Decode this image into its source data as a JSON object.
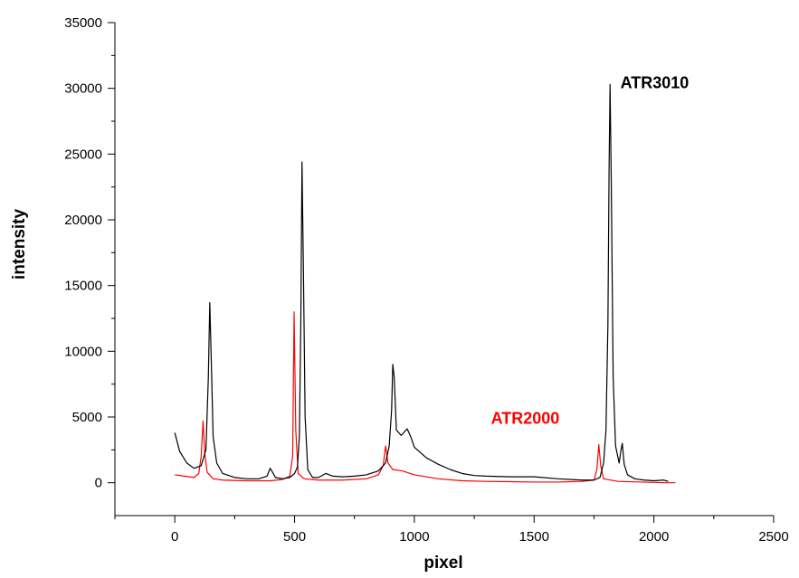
{
  "chart_data": {
    "type": "line",
    "title": "",
    "xlabel": "pixel",
    "ylabel": "intensity",
    "xlim": [
      -250,
      2500
    ],
    "ylim": [
      -2500,
      35000
    ],
    "x_ticks": [
      0,
      500,
      1000,
      1500,
      2000,
      2500
    ],
    "x_tick_labels": [
      "0",
      "500",
      "1000",
      "1500",
      "2000",
      "2500"
    ],
    "y_ticks": [
      0,
      5000,
      10000,
      15000,
      20000,
      25000,
      30000,
      35000
    ],
    "y_tick_labels": [
      "0",
      "5000",
      "10000",
      "15000",
      "20000",
      "25000",
      "30000",
      "35000"
    ],
    "grid": false,
    "series": [
      {
        "name": "ATR3010",
        "color": "#000000",
        "label_at": [
          1860,
          30000
        ],
        "points": [
          [
            0,
            3800
          ],
          [
            20,
            2400
          ],
          [
            50,
            1500
          ],
          [
            80,
            1100
          ],
          [
            110,
            1300
          ],
          [
            130,
            2500
          ],
          [
            140,
            8000
          ],
          [
            146,
            13700
          ],
          [
            152,
            9500
          ],
          [
            160,
            3500
          ],
          [
            175,
            1500
          ],
          [
            200,
            700
          ],
          [
            250,
            400
          ],
          [
            300,
            300
          ],
          [
            350,
            300
          ],
          [
            385,
            500
          ],
          [
            398,
            1100
          ],
          [
            408,
            800
          ],
          [
            420,
            400
          ],
          [
            450,
            300
          ],
          [
            480,
            400
          ],
          [
            500,
            700
          ],
          [
            512,
            1200
          ],
          [
            520,
            3500
          ],
          [
            526,
            12000
          ],
          [
            531,
            24400
          ],
          [
            537,
            16000
          ],
          [
            544,
            5000
          ],
          [
            555,
            1000
          ],
          [
            575,
            400
          ],
          [
            600,
            400
          ],
          [
            630,
            700
          ],
          [
            660,
            500
          ],
          [
            700,
            450
          ],
          [
            750,
            500
          ],
          [
            800,
            600
          ],
          [
            850,
            900
          ],
          [
            880,
            1500
          ],
          [
            895,
            2800
          ],
          [
            905,
            5500
          ],
          [
            910,
            9000
          ],
          [
            916,
            8000
          ],
          [
            925,
            4000
          ],
          [
            945,
            3600
          ],
          [
            960,
            3900
          ],
          [
            970,
            4100
          ],
          [
            985,
            3500
          ],
          [
            1000,
            2700
          ],
          [
            1050,
            1900
          ],
          [
            1100,
            1400
          ],
          [
            1150,
            1000
          ],
          [
            1200,
            700
          ],
          [
            1250,
            550
          ],
          [
            1300,
            500
          ],
          [
            1400,
            450
          ],
          [
            1500,
            450
          ],
          [
            1600,
            300
          ],
          [
            1700,
            200
          ],
          [
            1750,
            200
          ],
          [
            1775,
            400
          ],
          [
            1790,
            1500
          ],
          [
            1800,
            4000
          ],
          [
            1808,
            12000
          ],
          [
            1813,
            24000
          ],
          [
            1817,
            30300
          ],
          [
            1822,
            23000
          ],
          [
            1830,
            8000
          ],
          [
            1840,
            2800
          ],
          [
            1855,
            1500
          ],
          [
            1862,
            2400
          ],
          [
            1868,
            3000
          ],
          [
            1876,
            1400
          ],
          [
            1890,
            600
          ],
          [
            1920,
            300
          ],
          [
            1960,
            200
          ],
          [
            2000,
            150
          ],
          [
            2040,
            200
          ],
          [
            2060,
            100
          ]
        ]
      },
      {
        "name": "ATR2000",
        "color": "#ff0000",
        "label_at": [
          1320,
          4500
        ],
        "points": [
          [
            0,
            600
          ],
          [
            40,
            500
          ],
          [
            80,
            400
          ],
          [
            100,
            700
          ],
          [
            110,
            2000
          ],
          [
            118,
            4700
          ],
          [
            125,
            2200
          ],
          [
            135,
            800
          ],
          [
            160,
            300
          ],
          [
            200,
            200
          ],
          [
            300,
            150
          ],
          [
            400,
            150
          ],
          [
            450,
            250
          ],
          [
            480,
            500
          ],
          [
            492,
            2000
          ],
          [
            498,
            13000
          ],
          [
            505,
            4000
          ],
          [
            515,
            700
          ],
          [
            540,
            300
          ],
          [
            600,
            200
          ],
          [
            700,
            200
          ],
          [
            800,
            300
          ],
          [
            850,
            600
          ],
          [
            870,
            1300
          ],
          [
            880,
            2800
          ],
          [
            890,
            1500
          ],
          [
            910,
            1000
          ],
          [
            950,
            900
          ],
          [
            1000,
            600
          ],
          [
            1100,
            300
          ],
          [
            1200,
            150
          ],
          [
            1300,
            100
          ],
          [
            1400,
            80
          ],
          [
            1500,
            50
          ],
          [
            1600,
            50
          ],
          [
            1700,
            100
          ],
          [
            1750,
            200
          ],
          [
            1762,
            1000
          ],
          [
            1770,
            2900
          ],
          [
            1778,
            1300
          ],
          [
            1790,
            300
          ],
          [
            1850,
            100
          ],
          [
            1950,
            50
          ],
          [
            2050,
            0
          ],
          [
            2090,
            0
          ]
        ]
      }
    ]
  }
}
